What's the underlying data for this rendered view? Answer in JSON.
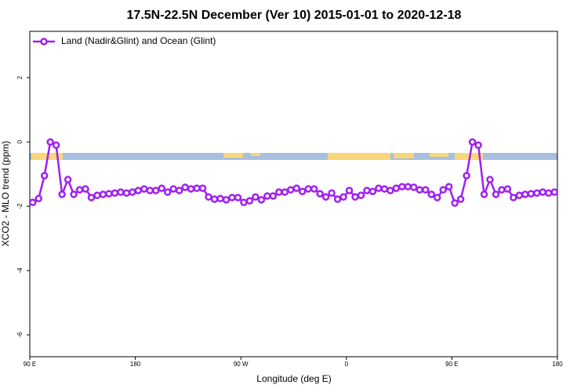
{
  "chart_data": {
    "type": "line",
    "title": "17.5N-22.5N December (Ver 10)   2015-01-01 to 2020-12-18",
    "xlabel": "Longitude (deg E)",
    "ylabel": "XCO2 - MLO trend (ppm)",
    "xlim": [
      90,
      540
    ],
    "ylim": [
      -6.68,
      3.44
    ],
    "xticks": [
      {
        "value": 90,
        "label": "90 E"
      },
      180,
      {
        "value": 270,
        "label": "90 W"
      },
      {
        "value": 360,
        "label": "0"
      },
      {
        "value": 450,
        "label": "90 E"
      },
      {
        "value": 540,
        "label": "180"
      }
    ],
    "yticks": [
      2,
      0,
      -2,
      -4,
      -6
    ],
    "legend": "top-left",
    "x": [
      92.5,
      97.5,
      102.5,
      107.5,
      112.5,
      117.5,
      122.5,
      127.5,
      132.5,
      137.5,
      142.5,
      147.5,
      152.5,
      157.5,
      162.5,
      167.5,
      172.5,
      177.5,
      182.5,
      187.5,
      192.5,
      197.5,
      202.5,
      207.5,
      212.5,
      217.5,
      222.5,
      227.5,
      232.5,
      237.5,
      242.5,
      247.5,
      252.5,
      257.5,
      262.5,
      267.5,
      272.5,
      277.5,
      282.5,
      287.5,
      292.5,
      297.5,
      302.5,
      307.5,
      312.5,
      317.5,
      322.5,
      327.5,
      332.5,
      337.5,
      342.5,
      347.5,
      352.5,
      357.5,
      362.5,
      367.5,
      372.5,
      377.5,
      382.5,
      387.5,
      392.5,
      397.5,
      402.5,
      407.5,
      412.5,
      417.5,
      422.5,
      427.5,
      432.5,
      437.5,
      442.5,
      447.5,
      452.5,
      457.5,
      462.5,
      467.5,
      472.5,
      477.5,
      482.5,
      487.5,
      492.5,
      497.5,
      502.5,
      507.5,
      512.5,
      517.5,
      522.5,
      527.5,
      532.5,
      537.5
    ],
    "series": [
      {
        "name": "Land (Nadir&Glint) and Ocean (Glint)",
        "color": "#a020f0",
        "values": [
          -1.88,
          -1.76,
          -1.05,
          0,
          -0.1,
          -1.63,
          -1.17,
          -1.63,
          -1.49,
          -1.46,
          -1.73,
          -1.66,
          -1.63,
          -1.61,
          -1.59,
          -1.56,
          -1.59,
          -1.56,
          -1.51,
          -1.46,
          -1.51,
          -1.51,
          -1.44,
          -1.56,
          -1.46,
          -1.51,
          -1.41,
          -1.46,
          -1.44,
          -1.44,
          -1.71,
          -1.78,
          -1.76,
          -1.8,
          -1.73,
          -1.73,
          -1.88,
          -1.83,
          -1.71,
          -1.8,
          -1.68,
          -1.68,
          -1.56,
          -1.56,
          -1.49,
          -1.44,
          -1.54,
          -1.46,
          -1.46,
          -1.61,
          -1.71,
          -1.59,
          -1.78,
          -1.71,
          -1.51,
          -1.71,
          -1.66,
          -1.51,
          -1.54,
          -1.44,
          -1.46,
          -1.51,
          -1.44,
          -1.39,
          -1.39,
          -1.41,
          -1.49,
          -1.49,
          -1.63,
          -1.73,
          -1.49,
          -1.39,
          -1.9,
          -1.78,
          -1.05,
          0,
          -0.1,
          -1.63,
          -1.17,
          -1.63,
          -1.49,
          -1.46,
          -1.73,
          -1.66,
          -1.63,
          -1.61,
          -1.59,
          -1.56,
          -1.59,
          -1.56
        ]
      }
    ]
  }
}
